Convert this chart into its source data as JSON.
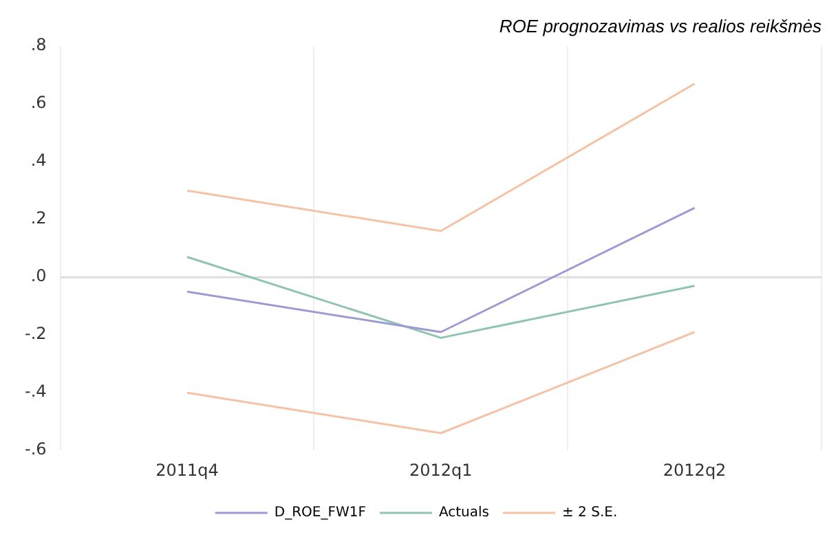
{
  "chart_data": {
    "type": "line",
    "title": "ROE prognozavimas vs realios reikšmės",
    "categories": [
      "2011q4",
      "2012q1",
      "2012q2"
    ],
    "series": [
      {
        "name": "D_ROE_FW1F",
        "color": "#9d9bd3",
        "values": [
          -0.05,
          -0.19,
          0.24
        ]
      },
      {
        "name": "Actuals",
        "color": "#8fc3b3",
        "values": [
          0.07,
          -0.21,
          -0.03
        ]
      },
      {
        "name": "± 2 S.E.",
        "color": "#f5c2a6",
        "values": [
          0.3,
          0.16,
          0.67
        ]
      },
      {
        "color": "#f5c2a6",
        "values": [
          -0.4,
          -0.54,
          -0.19
        ]
      }
    ],
    "ylim": [
      -0.6,
      0.8
    ],
    "yticks": [
      {
        "value": -0.6,
        "label": "-.6"
      },
      {
        "value": -0.4,
        "label": "-.4"
      },
      {
        "value": -0.2,
        "label": "-.2"
      },
      {
        "value": 0,
        "label": ".0"
      },
      {
        "value": 0.2,
        "label": ".2"
      },
      {
        "value": 0.4,
        "label": ".4"
      },
      {
        "value": 0.6,
        "label": ".6"
      },
      {
        "value": 0.8,
        "label": ".8"
      }
    ],
    "ref_lines": [
      {
        "axis": "y",
        "value": 0,
        "color": "#dddddd"
      }
    ],
    "grid": "x",
    "legend": "bottom",
    "marker": "none",
    "line_style": "solid"
  }
}
